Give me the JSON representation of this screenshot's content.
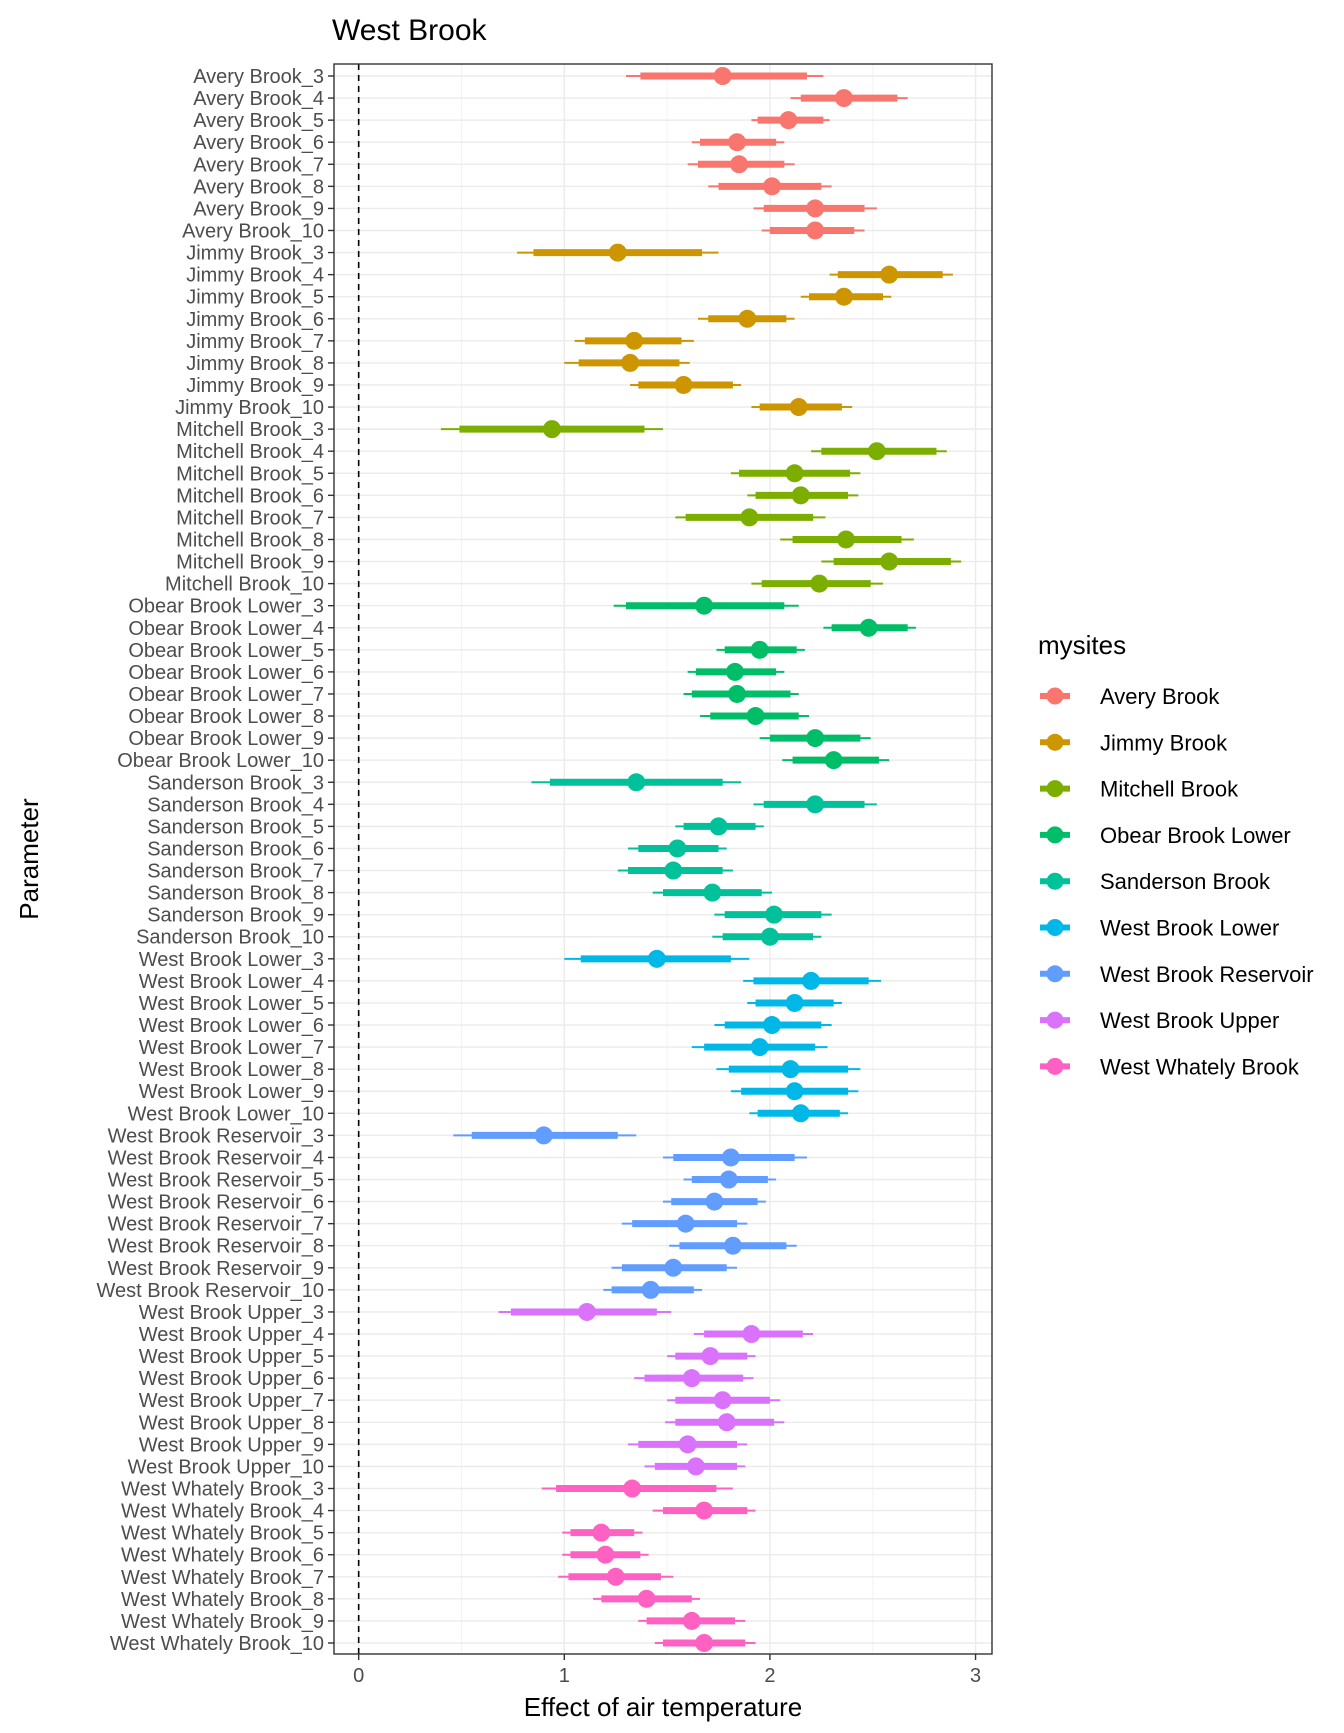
{
  "chart_data": {
    "type": "interval-dot",
    "title": "West Brook",
    "xlabel": "Effect of air temperature",
    "ylabel": "Parameter",
    "xlim": [
      -0.12,
      3.08
    ],
    "xticks": [
      0,
      1,
      2,
      3
    ],
    "reference_line": 0,
    "legend": {
      "title": "mysites",
      "position": "right"
    },
    "series": [
      {
        "name": "Avery Brook",
        "color": "#F8766D",
        "rows": [
          {
            "label": "Avery Brook_3",
            "mean": 1.77,
            "inner": [
              1.37,
              2.18
            ],
            "outer": [
              1.3,
              2.26
            ]
          },
          {
            "label": "Avery Brook_4",
            "mean": 2.36,
            "inner": [
              2.15,
              2.62
            ],
            "outer": [
              2.1,
              2.67
            ]
          },
          {
            "label": "Avery Brook_5",
            "mean": 2.09,
            "inner": [
              1.94,
              2.26
            ],
            "outer": [
              1.91,
              2.29
            ]
          },
          {
            "label": "Avery Brook_6",
            "mean": 1.84,
            "inner": [
              1.66,
              2.03
            ],
            "outer": [
              1.62,
              2.07
            ]
          },
          {
            "label": "Avery Brook_7",
            "mean": 1.85,
            "inner": [
              1.65,
              2.07
            ],
            "outer": [
              1.6,
              2.12
            ]
          },
          {
            "label": "Avery Brook_8",
            "mean": 2.01,
            "inner": [
              1.75,
              2.25
            ],
            "outer": [
              1.7,
              2.3
            ]
          },
          {
            "label": "Avery Brook_9",
            "mean": 2.22,
            "inner": [
              1.97,
              2.46
            ],
            "outer": [
              1.92,
              2.52
            ]
          },
          {
            "label": "Avery Brook_10",
            "mean": 2.22,
            "inner": [
              2.0,
              2.41
            ],
            "outer": [
              1.96,
              2.46
            ]
          }
        ]
      },
      {
        "name": "Jimmy Brook",
        "color": "#CD9600",
        "rows": [
          {
            "label": "Jimmy Brook_3",
            "mean": 1.26,
            "inner": [
              0.85,
              1.67
            ],
            "outer": [
              0.77,
              1.75
            ]
          },
          {
            "label": "Jimmy Brook_4",
            "mean": 2.58,
            "inner": [
              2.33,
              2.84
            ],
            "outer": [
              2.29,
              2.89
            ]
          },
          {
            "label": "Jimmy Brook_5",
            "mean": 2.36,
            "inner": [
              2.19,
              2.55
            ],
            "outer": [
              2.15,
              2.59
            ]
          },
          {
            "label": "Jimmy Brook_6",
            "mean": 1.89,
            "inner": [
              1.7,
              2.08
            ],
            "outer": [
              1.65,
              2.12
            ]
          },
          {
            "label": "Jimmy Brook_7",
            "mean": 1.34,
            "inner": [
              1.1,
              1.57
            ],
            "outer": [
              1.05,
              1.63
            ]
          },
          {
            "label": "Jimmy Brook_8",
            "mean": 1.32,
            "inner": [
              1.07,
              1.56
            ],
            "outer": [
              1.0,
              1.61
            ]
          },
          {
            "label": "Jimmy Brook_9",
            "mean": 1.58,
            "inner": [
              1.36,
              1.82
            ],
            "outer": [
              1.32,
              1.86
            ]
          },
          {
            "label": "Jimmy Brook_10",
            "mean": 2.14,
            "inner": [
              1.95,
              2.35
            ],
            "outer": [
              1.91,
              2.4
            ]
          }
        ]
      },
      {
        "name": "Mitchell Brook",
        "color": "#7CAE00",
        "rows": [
          {
            "label": "Mitchell Brook_3",
            "mean": 0.94,
            "inner": [
              0.49,
              1.39
            ],
            "outer": [
              0.4,
              1.48
            ]
          },
          {
            "label": "Mitchell Brook_4",
            "mean": 2.52,
            "inner": [
              2.25,
              2.81
            ],
            "outer": [
              2.2,
              2.86
            ]
          },
          {
            "label": "Mitchell Brook_5",
            "mean": 2.12,
            "inner": [
              1.85,
              2.39
            ],
            "outer": [
              1.81,
              2.44
            ]
          },
          {
            "label": "Mitchell Brook_6",
            "mean": 2.15,
            "inner": [
              1.93,
              2.38
            ],
            "outer": [
              1.89,
              2.43
            ]
          },
          {
            "label": "Mitchell Brook_7",
            "mean": 1.9,
            "inner": [
              1.59,
              2.21
            ],
            "outer": [
              1.54,
              2.27
            ]
          },
          {
            "label": "Mitchell Brook_8",
            "mean": 2.37,
            "inner": [
              2.11,
              2.64
            ],
            "outer": [
              2.05,
              2.7
            ]
          },
          {
            "label": "Mitchell Brook_9",
            "mean": 2.58,
            "inner": [
              2.31,
              2.88
            ],
            "outer": [
              2.25,
              2.93
            ]
          },
          {
            "label": "Mitchell Brook_10",
            "mean": 2.24,
            "inner": [
              1.96,
              2.49
            ],
            "outer": [
              1.91,
              2.55
            ]
          }
        ]
      },
      {
        "name": "Obear Brook Lower",
        "color": "#00BE67",
        "rows": [
          {
            "label": "Obear Brook Lower_3",
            "mean": 1.68,
            "inner": [
              1.3,
              2.07
            ],
            "outer": [
              1.24,
              2.14
            ]
          },
          {
            "label": "Obear Brook Lower_4",
            "mean": 2.48,
            "inner": [
              2.3,
              2.67
            ],
            "outer": [
              2.26,
              2.71
            ]
          },
          {
            "label": "Obear Brook Lower_5",
            "mean": 1.95,
            "inner": [
              1.78,
              2.13
            ],
            "outer": [
              1.74,
              2.17
            ]
          },
          {
            "label": "Obear Brook Lower_6",
            "mean": 1.83,
            "inner": [
              1.64,
              2.03
            ],
            "outer": [
              1.6,
              2.07
            ]
          },
          {
            "label": "Obear Brook Lower_7",
            "mean": 1.84,
            "inner": [
              1.62,
              2.1
            ],
            "outer": [
              1.58,
              2.14
            ]
          },
          {
            "label": "Obear Brook Lower_8",
            "mean": 1.93,
            "inner": [
              1.71,
              2.14
            ],
            "outer": [
              1.66,
              2.19
            ]
          },
          {
            "label": "Obear Brook Lower_9",
            "mean": 2.22,
            "inner": [
              2.0,
              2.44
            ],
            "outer": [
              1.95,
              2.49
            ]
          },
          {
            "label": "Obear Brook Lower_10",
            "mean": 2.31,
            "inner": [
              2.11,
              2.53
            ],
            "outer": [
              2.06,
              2.58
            ]
          }
        ]
      },
      {
        "name": "Sanderson Brook",
        "color": "#00C19A",
        "rows": [
          {
            "label": "Sanderson Brook_3",
            "mean": 1.35,
            "inner": [
              0.93,
              1.77
            ],
            "outer": [
              0.84,
              1.86
            ]
          },
          {
            "label": "Sanderson Brook_4",
            "mean": 2.22,
            "inner": [
              1.97,
              2.46
            ],
            "outer": [
              1.92,
              2.52
            ]
          },
          {
            "label": "Sanderson Brook_5",
            "mean": 1.75,
            "inner": [
              1.58,
              1.93
            ],
            "outer": [
              1.54,
              1.97
            ]
          },
          {
            "label": "Sanderson Brook_6",
            "mean": 1.55,
            "inner": [
              1.36,
              1.75
            ],
            "outer": [
              1.31,
              1.79
            ]
          },
          {
            "label": "Sanderson Brook_7",
            "mean": 1.53,
            "inner": [
              1.31,
              1.77
            ],
            "outer": [
              1.26,
              1.82
            ]
          },
          {
            "label": "Sanderson Brook_8",
            "mean": 1.72,
            "inner": [
              1.48,
              1.96
            ],
            "outer": [
              1.43,
              2.01
            ]
          },
          {
            "label": "Sanderson Brook_9",
            "mean": 2.02,
            "inner": [
              1.78,
              2.25
            ],
            "outer": [
              1.73,
              2.3
            ]
          },
          {
            "label": "Sanderson Brook_10",
            "mean": 2.0,
            "inner": [
              1.77,
              2.21
            ],
            "outer": [
              1.72,
              2.25
            ]
          }
        ]
      },
      {
        "name": "West Brook Lower",
        "color": "#00B8E7",
        "rows": [
          {
            "label": "West Brook Lower_3",
            "mean": 1.45,
            "inner": [
              1.08,
              1.81
            ],
            "outer": [
              1.0,
              1.9
            ]
          },
          {
            "label": "West Brook Lower_4",
            "mean": 2.2,
            "inner": [
              1.92,
              2.48
            ],
            "outer": [
              1.87,
              2.54
            ]
          },
          {
            "label": "West Brook Lower_5",
            "mean": 2.12,
            "inner": [
              1.93,
              2.31
            ],
            "outer": [
              1.89,
              2.35
            ]
          },
          {
            "label": "West Brook Lower_6",
            "mean": 2.01,
            "inner": [
              1.78,
              2.25
            ],
            "outer": [
              1.73,
              2.3
            ]
          },
          {
            "label": "West Brook Lower_7",
            "mean": 1.95,
            "inner": [
              1.68,
              2.22
            ],
            "outer": [
              1.62,
              2.28
            ]
          },
          {
            "label": "West Brook Lower_8",
            "mean": 2.1,
            "inner": [
              1.8,
              2.38
            ],
            "outer": [
              1.74,
              2.44
            ]
          },
          {
            "label": "West Brook Lower_9",
            "mean": 2.12,
            "inner": [
              1.86,
              2.38
            ],
            "outer": [
              1.81,
              2.43
            ]
          },
          {
            "label": "West Brook Lower_10",
            "mean": 2.15,
            "inner": [
              1.94,
              2.34
            ],
            "outer": [
              1.9,
              2.38
            ]
          }
        ]
      },
      {
        "name": "West Brook Reservoir",
        "color": "#619CFF",
        "rows": [
          {
            "label": "West Brook Reservoir_3",
            "mean": 0.9,
            "inner": [
              0.55,
              1.26
            ],
            "outer": [
              0.46,
              1.35
            ]
          },
          {
            "label": "West Brook Reservoir_4",
            "mean": 1.81,
            "inner": [
              1.53,
              2.12
            ],
            "outer": [
              1.48,
              2.18
            ]
          },
          {
            "label": "West Brook Reservoir_5",
            "mean": 1.8,
            "inner": [
              1.62,
              1.99
            ],
            "outer": [
              1.58,
              2.03
            ]
          },
          {
            "label": "West Brook Reservoir_6",
            "mean": 1.73,
            "inner": [
              1.52,
              1.94
            ],
            "outer": [
              1.48,
              1.98
            ]
          },
          {
            "label": "West Brook Reservoir_7",
            "mean": 1.59,
            "inner": [
              1.33,
              1.84
            ],
            "outer": [
              1.28,
              1.89
            ]
          },
          {
            "label": "West Brook Reservoir_8",
            "mean": 1.82,
            "inner": [
              1.56,
              2.08
            ],
            "outer": [
              1.51,
              2.13
            ]
          },
          {
            "label": "West Brook Reservoir_9",
            "mean": 1.53,
            "inner": [
              1.28,
              1.79
            ],
            "outer": [
              1.23,
              1.84
            ]
          },
          {
            "label": "West Brook Reservoir_10",
            "mean": 1.42,
            "inner": [
              1.23,
              1.63
            ],
            "outer": [
              1.19,
              1.67
            ]
          }
        ]
      },
      {
        "name": "West Brook Upper",
        "color": "#DB72FB",
        "rows": [
          {
            "label": "West Brook Upper_3",
            "mean": 1.11,
            "inner": [
              0.74,
              1.45
            ],
            "outer": [
              0.68,
              1.52
            ]
          },
          {
            "label": "West Brook Upper_4",
            "mean": 1.91,
            "inner": [
              1.68,
              2.16
            ],
            "outer": [
              1.63,
              2.21
            ]
          },
          {
            "label": "West Brook Upper_5",
            "mean": 1.71,
            "inner": [
              1.54,
              1.89
            ],
            "outer": [
              1.5,
              1.93
            ]
          },
          {
            "label": "West Brook Upper_6",
            "mean": 1.62,
            "inner": [
              1.39,
              1.87
            ],
            "outer": [
              1.34,
              1.92
            ]
          },
          {
            "label": "West Brook Upper_7",
            "mean": 1.77,
            "inner": [
              1.54,
              2.0
            ],
            "outer": [
              1.5,
              2.05
            ]
          },
          {
            "label": "West Brook Upper_8",
            "mean": 1.79,
            "inner": [
              1.54,
              2.02
            ],
            "outer": [
              1.49,
              2.07
            ]
          },
          {
            "label": "West Brook Upper_9",
            "mean": 1.6,
            "inner": [
              1.36,
              1.84
            ],
            "outer": [
              1.31,
              1.89
            ]
          },
          {
            "label": "West Brook Upper_10",
            "mean": 1.64,
            "inner": [
              1.44,
              1.84
            ],
            "outer": [
              1.39,
              1.88
            ]
          }
        ]
      },
      {
        "name": "West Whately Brook",
        "color": "#FF61C3",
        "rows": [
          {
            "label": "West Whately Brook_3",
            "mean": 1.33,
            "inner": [
              0.96,
              1.74
            ],
            "outer": [
              0.89,
              1.82
            ]
          },
          {
            "label": "West Whately Brook_4",
            "mean": 1.68,
            "inner": [
              1.48,
              1.89
            ],
            "outer": [
              1.43,
              1.93
            ]
          },
          {
            "label": "West Whately Brook_5",
            "mean": 1.18,
            "inner": [
              1.03,
              1.34
            ],
            "outer": [
              0.99,
              1.38
            ]
          },
          {
            "label": "West Whately Brook_6",
            "mean": 1.2,
            "inner": [
              1.03,
              1.37
            ],
            "outer": [
              0.99,
              1.41
            ]
          },
          {
            "label": "West Whately Brook_7",
            "mean": 1.25,
            "inner": [
              1.02,
              1.47
            ],
            "outer": [
              0.97,
              1.53
            ]
          },
          {
            "label": "West Whately Brook_8",
            "mean": 1.4,
            "inner": [
              1.18,
              1.62
            ],
            "outer": [
              1.14,
              1.66
            ]
          },
          {
            "label": "West Whately Brook_9",
            "mean": 1.62,
            "inner": [
              1.4,
              1.83
            ],
            "outer": [
              1.36,
              1.88
            ]
          },
          {
            "label": "West Whately Brook_10",
            "mean": 1.68,
            "inner": [
              1.48,
              1.88
            ],
            "outer": [
              1.44,
              1.93
            ]
          }
        ]
      }
    ]
  }
}
